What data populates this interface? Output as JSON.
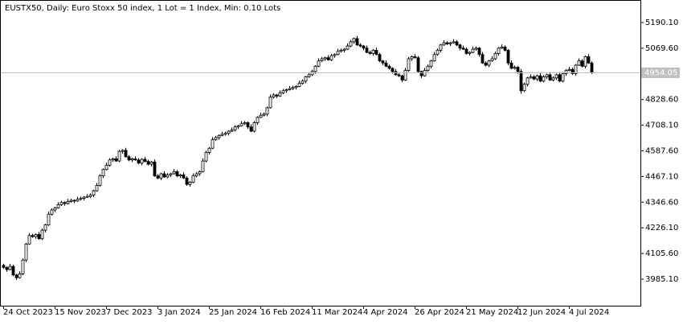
{
  "chart_data": {
    "type": "candlestick",
    "title": "EUSTX50, Daily:  Euro Stoxx 50 index, 1 Lot = 1 Index, Min: 0.10 Lots",
    "categories": [
      "24 Oct 2023",
      null,
      null,
      null,
      null,
      null,
      null,
      null,
      null,
      null,
      null,
      null,
      null,
      null,
      null,
      null,
      "15 Nov 2023",
      null,
      null,
      null,
      null,
      null,
      null,
      null,
      null,
      null,
      null,
      null,
      null,
      null,
      null,
      null,
      "7 Dec 2023",
      null,
      null,
      null,
      null,
      null,
      null,
      null,
      null,
      null,
      null,
      null,
      null,
      null,
      null,
      null,
      "3 Jan 2024",
      null,
      null,
      null,
      null,
      null,
      null,
      null,
      null,
      null,
      null,
      null,
      null,
      null,
      null,
      null,
      "25 Jan 2024",
      null,
      null,
      null,
      null,
      null,
      null,
      null,
      null,
      null,
      null,
      null,
      null,
      null,
      null,
      null,
      "16 Feb 2024",
      null,
      null,
      null,
      null,
      null,
      null,
      null,
      null,
      null,
      null,
      null,
      null,
      null,
      null,
      null,
      "11 Mar 2024",
      null,
      null,
      null,
      null,
      null,
      null,
      null,
      null,
      null,
      null,
      null,
      null,
      null,
      null,
      null,
      "4 Apr 2024",
      null,
      null,
      null,
      null,
      null,
      null,
      null,
      null,
      null,
      null,
      null,
      null,
      null,
      null,
      null,
      "26 Apr 2024",
      null,
      null,
      null,
      null,
      null,
      null,
      null,
      null,
      null,
      null,
      null,
      null,
      null,
      null,
      null,
      "21 May 2024",
      null,
      null,
      null,
      null,
      null,
      null,
      null,
      null,
      null,
      null,
      null,
      null,
      null,
      null,
      null,
      "12 Jun 2024",
      null,
      null,
      null,
      null,
      null,
      null,
      null,
      null,
      null,
      null,
      null,
      null,
      null,
      null,
      null,
      "4 Jul 2024",
      null,
      null,
      null,
      null,
      null,
      null,
      null
    ],
    "ohlc": [
      [
        4050,
        4058,
        4034,
        4040
      ],
      [
        4040,
        4045,
        4020,
        4030
      ],
      [
        4030,
        4057,
        4026,
        4045
      ],
      [
        4045,
        4053,
        3999,
        4005
      ],
      [
        4005,
        4010,
        3982,
        3992
      ],
      [
        3992,
        4022,
        3988,
        4010
      ],
      [
        4010,
        4083,
        4004,
        4075
      ],
      [
        4075,
        4155,
        4065,
        4150
      ],
      [
        4150,
        4202,
        4146,
        4190
      ],
      [
        4190,
        4198,
        4179,
        4185
      ],
      [
        4185,
        4200,
        4175,
        4195
      ],
      [
        4195,
        4207,
        4171,
        4175
      ],
      [
        4175,
        4223,
        4169,
        4215
      ],
      [
        4215,
        4245,
        4205,
        4240
      ],
      [
        4240,
        4302,
        4236,
        4290
      ],
      [
        4290,
        4318,
        4284,
        4310
      ],
      [
        4310,
        4325,
        4300,
        4320
      ],
      [
        4320,
        4347,
        4316,
        4335
      ],
      [
        4335,
        4353,
        4329,
        4345
      ],
      [
        4345,
        4350,
        4330,
        4340
      ],
      [
        4340,
        4362,
        4336,
        4350
      ],
      [
        4350,
        4363,
        4344,
        4355
      ],
      [
        4355,
        4360,
        4342,
        4352
      ],
      [
        4352,
        4372,
        4348,
        4360
      ],
      [
        4360,
        4373,
        4354,
        4365
      ],
      [
        4365,
        4375,
        4355,
        4370
      ],
      [
        4370,
        4384,
        4366,
        4372
      ],
      [
        4372,
        4388,
        4366,
        4380
      ],
      [
        4380,
        4405,
        4370,
        4400
      ],
      [
        4400,
        4437,
        4396,
        4425
      ],
      [
        4425,
        4478,
        4419,
        4470
      ],
      [
        4470,
        4505,
        4460,
        4500
      ],
      [
        4500,
        4532,
        4496,
        4520
      ],
      [
        4520,
        4553,
        4514,
        4545
      ],
      [
        4545,
        4555,
        4535,
        4550
      ],
      [
        4550,
        4562,
        4536,
        4540
      ],
      [
        4540,
        4593,
        4534,
        4585
      ],
      [
        4585,
        4595,
        4575,
        4590
      ],
      [
        4590,
        4602,
        4556,
        4560
      ],
      [
        4560,
        4568,
        4539,
        4545
      ],
      [
        4545,
        4555,
        4535,
        4550
      ],
      [
        4550,
        4562,
        4541,
        4545
      ],
      [
        4545,
        4553,
        4524,
        4530
      ],
      [
        4530,
        4553,
        4520,
        4548
      ],
      [
        4548,
        4560,
        4534,
        4538
      ],
      [
        4538,
        4546,
        4519,
        4525
      ],
      [
        4525,
        4540,
        4515,
        4535
      ],
      [
        4535,
        4547,
        4466,
        4470
      ],
      [
        4470,
        4478,
        4454,
        4460
      ],
      [
        4460,
        4485,
        4450,
        4480
      ],
      [
        4480,
        4492,
        4461,
        4465
      ],
      [
        4465,
        4483,
        4459,
        4475
      ],
      [
        4475,
        4485,
        4465,
        4480
      ],
      [
        4480,
        4502,
        4476,
        4490
      ],
      [
        4490,
        4498,
        4464,
        4470
      ],
      [
        4470,
        4480,
        4460,
        4475
      ],
      [
        4475,
        4487,
        4456,
        4460
      ],
      [
        4460,
        4468,
        4424,
        4430
      ],
      [
        4430,
        4445,
        4420,
        4440
      ],
      [
        4440,
        4482,
        4436,
        4470
      ],
      [
        4470,
        4488,
        4464,
        4480
      ],
      [
        4480,
        4495,
        4470,
        4490
      ],
      [
        4490,
        4552,
        4486,
        4540
      ],
      [
        4540,
        4588,
        4534,
        4580
      ],
      [
        4580,
        4605,
        4570,
        4600
      ],
      [
        4600,
        4652,
        4596,
        4640
      ],
      [
        4640,
        4658,
        4634,
        4650
      ],
      [
        4650,
        4665,
        4640,
        4660
      ],
      [
        4660,
        4677,
        4656,
        4665
      ],
      [
        4665,
        4678,
        4659,
        4670
      ],
      [
        4670,
        4685,
        4660,
        4680
      ],
      [
        4680,
        4697,
        4676,
        4685
      ],
      [
        4685,
        4708,
        4679,
        4700
      ],
      [
        4700,
        4710,
        4690,
        4705
      ],
      [
        4705,
        4727,
        4701,
        4715
      ],
      [
        4715,
        4728,
        4709,
        4720
      ],
      [
        4720,
        4725,
        4690,
        4700
      ],
      [
        4700,
        4712,
        4676,
        4680
      ],
      [
        4680,
        4728,
        4674,
        4720
      ],
      [
        4720,
        4750,
        4710,
        4745
      ],
      [
        4745,
        4767,
        4741,
        4755
      ],
      [
        4755,
        4768,
        4749,
        4760
      ],
      [
        4760,
        4795,
        4750,
        4790
      ],
      [
        4790,
        4852,
        4786,
        4840
      ],
      [
        4840,
        4858,
        4834,
        4850
      ],
      [
        4850,
        4855,
        4835,
        4845
      ],
      [
        4845,
        4872,
        4841,
        4860
      ],
      [
        4860,
        4878,
        4854,
        4870
      ],
      [
        4870,
        4880,
        4860,
        4875
      ],
      [
        4875,
        4892,
        4871,
        4880
      ],
      [
        4880,
        4893,
        4874,
        4885
      ],
      [
        4885,
        4895,
        4875,
        4890
      ],
      [
        4890,
        4917,
        4886,
        4905
      ],
      [
        4905,
        4923,
        4899,
        4915
      ],
      [
        4915,
        4940,
        4905,
        4935
      ],
      [
        4935,
        4957,
        4931,
        4945
      ],
      [
        4945,
        4968,
        4939,
        4960
      ],
      [
        4960,
        4990,
        4950,
        4985
      ],
      [
        4985,
        5022,
        4981,
        5010
      ],
      [
        5010,
        5028,
        5004,
        5020
      ],
      [
        5020,
        5030,
        5010,
        5025
      ],
      [
        5025,
        5037,
        5011,
        5015
      ],
      [
        5015,
        5043,
        5009,
        5035
      ],
      [
        5035,
        5045,
        5025,
        5040
      ],
      [
        5040,
        5067,
        5036,
        5055
      ],
      [
        5055,
        5068,
        5049,
        5060
      ],
      [
        5060,
        5070,
        5050,
        5065
      ],
      [
        5065,
        5092,
        5061,
        5080
      ],
      [
        5080,
        5108,
        5074,
        5100
      ],
      [
        5100,
        5120,
        5090,
        5115
      ],
      [
        5115,
        5127,
        5081,
        5085
      ],
      [
        5085,
        5093,
        5074,
        5080
      ],
      [
        5080,
        5085,
        5060,
        5070
      ],
      [
        5070,
        5082,
        5046,
        5050
      ],
      [
        5050,
        5058,
        5039,
        5045
      ],
      [
        5045,
        5065,
        5035,
        5060
      ],
      [
        5060,
        5072,
        5036,
        5040
      ],
      [
        5040,
        5048,
        5004,
        5010
      ],
      [
        5010,
        5015,
        4990,
        5000
      ],
      [
        5000,
        5012,
        4981,
        4985
      ],
      [
        4985,
        4993,
        4969,
        4975
      ],
      [
        4975,
        4980,
        4950,
        4960
      ],
      [
        4960,
        4972,
        4941,
        4945
      ],
      [
        4945,
        4953,
        4934,
        4940
      ],
      [
        4940,
        4945,
        4910,
        4920
      ],
      [
        4920,
        4977,
        4916,
        4965
      ],
      [
        4965,
        5028,
        4959,
        5020
      ],
      [
        5020,
        5035,
        5010,
        5030
      ],
      [
        5030,
        5042,
        5021,
        5025
      ],
      [
        5025,
        5033,
        4954,
        4960
      ],
      [
        4960,
        4965,
        4930,
        4940
      ],
      [
        4940,
        4977,
        4936,
        4965
      ],
      [
        4965,
        4993,
        4959,
        4985
      ],
      [
        4985,
        5015,
        4975,
        5010
      ],
      [
        5010,
        5052,
        5006,
        5040
      ],
      [
        5040,
        5068,
        5034,
        5060
      ],
      [
        5060,
        5090,
        5050,
        5085
      ],
      [
        5085,
        5107,
        5081,
        5095
      ],
      [
        5095,
        5103,
        5084,
        5090
      ],
      [
        5090,
        5100,
        5080,
        5095
      ],
      [
        5095,
        5112,
        5091,
        5100
      ],
      [
        5100,
        5108,
        5079,
        5085
      ],
      [
        5085,
        5090,
        5060,
        5070
      ],
      [
        5070,
        5082,
        5061,
        5065
      ],
      [
        5065,
        5073,
        5039,
        5045
      ],
      [
        5045,
        5055,
        5035,
        5050
      ],
      [
        5050,
        5077,
        5046,
        5065
      ],
      [
        5065,
        5078,
        5059,
        5070
      ],
      [
        5070,
        5075,
        5030,
        5040
      ],
      [
        5040,
        5052,
        4996,
        5000
      ],
      [
        5000,
        5008,
        4984,
        4990
      ],
      [
        4990,
        5015,
        4980,
        5010
      ],
      [
        5010,
        5032,
        5006,
        5020
      ],
      [
        5020,
        5053,
        5014,
        5045
      ],
      [
        5045,
        5075,
        5035,
        5070
      ],
      [
        5070,
        5087,
        5066,
        5075
      ],
      [
        5075,
        5083,
        5054,
        5060
      ],
      [
        5060,
        5065,
        4990,
        5000
      ],
      [
        5000,
        5012,
        4971,
        4975
      ],
      [
        4975,
        4988,
        4969,
        4980
      ],
      [
        4980,
        4985,
        4950,
        4960
      ],
      [
        4960,
        4972,
        4856,
        4870
      ],
      [
        4870,
        4908,
        4864,
        4900
      ],
      [
        4900,
        4935,
        4890,
        4930
      ],
      [
        4930,
        4947,
        4926,
        4935
      ],
      [
        4935,
        4943,
        4919,
        4925
      ],
      [
        4925,
        4945,
        4915,
        4940
      ],
      [
        4940,
        4952,
        4911,
        4915
      ],
      [
        4915,
        4943,
        4909,
        4935
      ],
      [
        4935,
        4950,
        4925,
        4945
      ],
      [
        4945,
        4957,
        4916,
        4920
      ],
      [
        4920,
        4938,
        4914,
        4930
      ],
      [
        4930,
        4950,
        4920,
        4945
      ],
      [
        4945,
        4957,
        4911,
        4915
      ],
      [
        4915,
        4958,
        4909,
        4950
      ],
      [
        4950,
        4970,
        4940,
        4965
      ],
      [
        4965,
        4982,
        4961,
        4970
      ],
      [
        4970,
        4978,
        4944,
        4950
      ],
      [
        4950,
        4995,
        4940,
        4990
      ],
      [
        4990,
        5022,
        4986,
        5010
      ],
      [
        5010,
        5018,
        4979,
        4985
      ],
      [
        4985,
        5035,
        4975,
        5030
      ],
      [
        5030,
        5042,
        4996,
        5000
      ],
      [
        5000,
        5008,
        4948,
        4954.05
      ]
    ],
    "ylim": [
      3860.5,
      5295.9
    ],
    "yticks": [
      {
        "value": 5190.1,
        "label": "5190.10"
      },
      {
        "value": 5069.6,
        "label": "5069.60"
      },
      {
        "value": 4828.6,
        "label": "4828.60"
      },
      {
        "value": 4708.1,
        "label": "4708.10"
      },
      {
        "value": 4587.6,
        "label": "4587.60"
      },
      {
        "value": 4467.1,
        "label": "4467.10"
      },
      {
        "value": 4346.6,
        "label": "4346.60"
      },
      {
        "value": 4226.1,
        "label": "4226.10"
      },
      {
        "value": 4105.6,
        "label": "4105.60"
      },
      {
        "value": 3985.1,
        "label": "3985.10"
      }
    ],
    "current_price": {
      "value": 4954.05,
      "label": "4954.05"
    },
    "up_color": "#ffffff",
    "down_color": "#000000",
    "grid": false
  }
}
